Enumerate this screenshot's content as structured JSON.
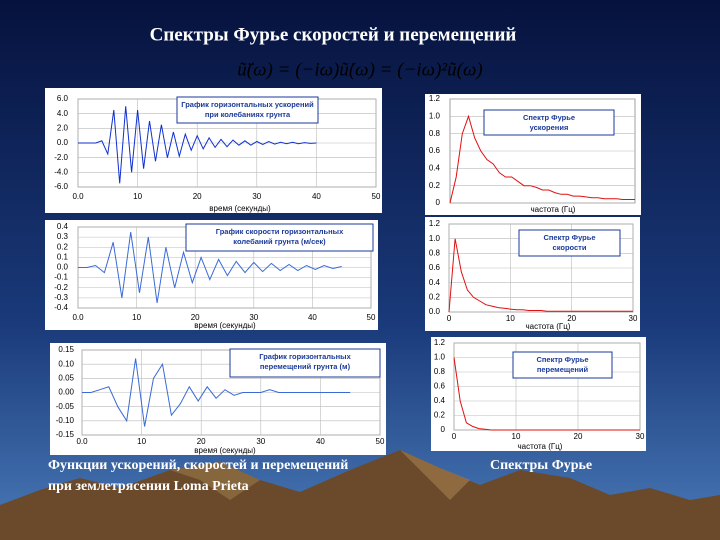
{
  "title": "Спектры Фурье скоростей и перемещений",
  "formula": "ũ̈(ω) = (−iω)ũ̇(ω) = (−iω)²ũ(ω)",
  "caption_left": [
    "Функции ускорений, скоростей и перемещений",
    "при землетрясении Loma Prieta"
  ],
  "caption_right": "Спектры Фурье",
  "chart_data": [
    {
      "type": "line",
      "title": [
        "График горизонтальных ускорений",
        "при колебаниях грунта"
      ],
      "xlabel": "время (секунды)",
      "color": "#1030d0",
      "grid": true,
      "x": [
        0,
        1,
        2,
        3,
        4,
        5,
        6,
        7,
        8,
        9,
        10,
        11,
        12,
        13,
        14,
        15,
        16,
        17,
        18,
        19,
        20,
        21,
        22,
        23,
        24,
        25,
        26,
        27,
        28,
        29,
        30,
        31,
        32,
        33,
        34,
        35,
        36,
        37,
        38,
        39,
        40
      ],
      "values": [
        0,
        0,
        0,
        0,
        0.3,
        -1.5,
        4.5,
        -5.5,
        5,
        -4,
        4.5,
        -3.5,
        3,
        -2.5,
        2.5,
        -2,
        1.5,
        -1.8,
        1.2,
        -1,
        1,
        -0.8,
        0.7,
        -0.6,
        0.5,
        -0.5,
        0.4,
        -0.3,
        0.3,
        -0.3,
        0.2,
        -0.2,
        0.2,
        -0.15,
        0.1,
        -0.1,
        0.1,
        -0.1,
        0.05,
        -0.05,
        0
      ],
      "xlim": [
        0,
        50
      ],
      "xticks": [
        {
          "value": 0,
          "label": "0.0"
        },
        10,
        20,
        30,
        40,
        50
      ],
      "ylim": [
        -6,
        6
      ],
      "yticks": [
        {
          "value": 6,
          "label": "6.0"
        },
        {
          "value": 4,
          "label": "4.0"
        },
        {
          "value": 2,
          "label": "2.0"
        },
        {
          "value": 0,
          "label": "0.0"
        },
        {
          "value": -2,
          "label": "-2.0"
        },
        {
          "value": -4,
          "label": "-4.0"
        },
        {
          "value": -6,
          "label": "-6.0"
        }
      ]
    },
    {
      "type": "line",
      "title": [
        "График скорости горизонтальных",
        "колебаний грунта (м/сек)"
      ],
      "xlabel": "время (секунды)",
      "color": "#3a6ad8",
      "grid": true,
      "x": [
        0,
        1.5,
        3,
        4.5,
        6,
        7.5,
        9,
        10.5,
        12,
        13.5,
        15,
        16.5,
        18,
        19.5,
        21,
        22.5,
        24,
        25.5,
        27,
        28.5,
        30,
        31.5,
        33,
        34.5,
        36,
        37.5,
        39,
        40.5,
        42,
        43.5,
        45
      ],
      "values": [
        0,
        0,
        0.02,
        -0.05,
        0.25,
        -0.3,
        0.35,
        -0.25,
        0.3,
        -0.35,
        0.2,
        -0.2,
        0.15,
        -0.15,
        0.1,
        -0.12,
        0.08,
        -0.08,
        0.06,
        -0.05,
        0.05,
        -0.04,
        0.04,
        -0.03,
        0.03,
        -0.03,
        0.02,
        -0.02,
        0.02,
        -0.01,
        0.01
      ],
      "xlim": [
        0,
        50
      ],
      "xticks": [
        {
          "value": 0,
          "label": "0.0"
        },
        10,
        20,
        30,
        40,
        50
      ],
      "ylim": [
        -0.4,
        0.4
      ],
      "yticks": [
        0.4,
        0.3,
        0.2,
        0.1,
        {
          "value": 0,
          "label": "0.0"
        },
        -0.1,
        -0.2,
        -0.3,
        -0.4
      ]
    },
    {
      "type": "line",
      "title": [
        "График горизонтальных",
        "перемещений грунта (м)"
      ],
      "xlabel": "время (секунды)",
      "color": "#3a6ad8",
      "grid": true,
      "x": [
        0,
        1.5,
        3,
        4.5,
        6,
        7.5,
        9,
        10.5,
        12,
        13.5,
        15,
        16.5,
        18,
        19.5,
        21,
        22.5,
        24,
        25.5,
        27,
        28.5,
        30,
        31.5,
        33,
        34.5,
        36,
        37.5,
        39,
        40.5,
        42,
        43.5,
        45
      ],
      "values": [
        0,
        0,
        0.01,
        0.02,
        -0.05,
        -0.1,
        0.12,
        -0.12,
        0.05,
        0.1,
        -0.08,
        -0.04,
        0.02,
        -0.03,
        0.02,
        -0.02,
        0.01,
        -0.01,
        0,
        0,
        0,
        0.01,
        0,
        0,
        0,
        0,
        0,
        0,
        0,
        0,
        0
      ],
      "xlim": [
        0,
        50
      ],
      "xticks": [
        {
          "value": 0,
          "label": "0.0"
        },
        10,
        20,
        30,
        40,
        50
      ],
      "ylim": [
        -0.15,
        0.15
      ],
      "yticks": [
        0.15,
        {
          "value": 0.1,
          "label": "0.10"
        },
        0.05,
        {
          "value": 0,
          "label": "0.00"
        },
        -0.05,
        {
          "value": -0.1,
          "label": "-0.10"
        },
        -0.15
      ]
    },
    {
      "type": "line",
      "title": [
        "Спектр Фурье",
        "ускорения"
      ],
      "xlabel": "частота (Гц)",
      "color": "#e01010",
      "grid": true,
      "x": [
        0,
        1,
        2,
        3,
        4,
        5,
        6,
        7,
        8,
        9,
        10,
        11,
        12,
        13,
        14,
        15,
        16,
        17,
        18,
        19,
        20,
        21,
        22,
        23,
        24,
        25,
        26,
        27,
        28,
        29,
        30
      ],
      "values": [
        0,
        0.3,
        0.8,
        1.0,
        0.75,
        0.6,
        0.5,
        0.45,
        0.35,
        0.3,
        0.3,
        0.25,
        0.2,
        0.2,
        0.18,
        0.15,
        0.15,
        0.12,
        0.1,
        0.1,
        0.08,
        0.08,
        0.07,
        0.06,
        0.06,
        0.05,
        0.05,
        0.05,
        0.04,
        0.04,
        0.04
      ],
      "xlim": [
        0,
        30
      ],
      "ylim": [
        0,
        1.2
      ],
      "yticks": [
        1.2,
        {
          "value": 1,
          "label": "1.0"
        },
        0.8,
        0.6,
        0.4,
        0.2,
        0
      ]
    },
    {
      "type": "line",
      "title": [
        "Спектр Фурье",
        "скорости"
      ],
      "xlabel": "частота (Гц)",
      "color": "#e01010",
      "grid": true,
      "x": [
        0,
        1,
        2,
        3,
        4,
        5,
        6,
        7,
        8,
        9,
        10,
        11,
        12,
        13,
        14,
        15,
        16,
        17,
        18,
        19,
        20,
        21,
        22,
        23,
        24,
        25,
        26,
        27,
        28,
        29,
        30
      ],
      "values": [
        0,
        1.0,
        0.55,
        0.3,
        0.2,
        0.15,
        0.1,
        0.08,
        0.06,
        0.05,
        0.04,
        0.03,
        0.03,
        0.02,
        0.02,
        0.02,
        0.01,
        0.01,
        0.01,
        0.01,
        0.01,
        0.01,
        0.01,
        0.01,
        0.01,
        0.01,
        0.01,
        0.01,
        0.01,
        0.01,
        0.01
      ],
      "xlim": [
        0,
        30
      ],
      "xticks": [
        0,
        10,
        20,
        30
      ],
      "ylim": [
        0,
        1.2
      ],
      "yticks": [
        1.2,
        {
          "value": 1,
          "label": "1.0"
        },
        0.8,
        0.6,
        0.4,
        0.2,
        {
          "value": 0,
          "label": "0.0"
        }
      ]
    },
    {
      "type": "line",
      "title": [
        "Спектр Фурье",
        "перемещений"
      ],
      "xlabel": "частота (Гц)",
      "color": "#e01010",
      "grid": true,
      "x": [
        0,
        1,
        2,
        3,
        4,
        5,
        6,
        7,
        8,
        9,
        10,
        11,
        12,
        13,
        14,
        15,
        16,
        17,
        18,
        19,
        20,
        21,
        22,
        23,
        24,
        25,
        26,
        27,
        28,
        29,
        30
      ],
      "values": [
        1.0,
        0.4,
        0.1,
        0.05,
        0.02,
        0.01,
        0,
        0,
        0,
        0,
        0,
        0,
        0,
        0,
        0,
        0,
        0,
        0,
        0,
        0,
        0,
        0,
        0,
        0,
        0,
        0,
        0,
        0,
        0,
        0,
        0
      ],
      "xlim": [
        0,
        30
      ],
      "xticks": [
        0,
        10,
        20,
        30
      ],
      "ylim": [
        0,
        1.2
      ],
      "yticks": [
        1.2,
        {
          "value": 1,
          "label": "1.0"
        },
        0.8,
        0.6,
        0.4,
        0.2,
        0
      ]
    }
  ]
}
